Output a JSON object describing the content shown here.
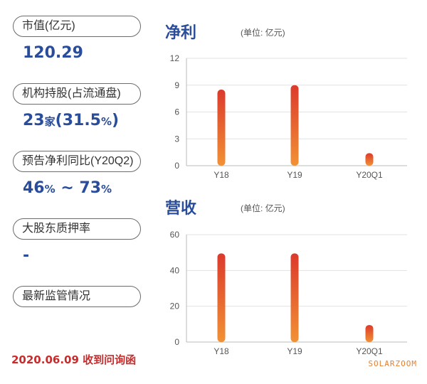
{
  "metrics": {
    "market_cap": {
      "label": "市值(亿元)",
      "value": "120.29"
    },
    "institutions": {
      "label": "机构持股(占流通盘)",
      "count": "23",
      "count_unit": "家",
      "open": "(",
      "pct": "31.5",
      "pct_unit": "%",
      "close": ")"
    },
    "forecast": {
      "label": "预告净利同比(Y20Q2)",
      "low": "46",
      "low_unit": "%",
      "sep": " ~ ",
      "high": "73",
      "high_unit": "%"
    },
    "pledge": {
      "label": "大股东质押率",
      "value": "-"
    },
    "regulation": {
      "label": "最新监管情况"
    }
  },
  "footer": {
    "text": "2020.06.09 收到问询函"
  },
  "brand": {
    "text": "SOLARZOOM"
  },
  "colors": {
    "bar_top": "#dc3a2c",
    "bar_bottom": "#f29134",
    "title": "#2a4d9b",
    "footer": "#cc2a2a"
  },
  "chart_data": [
    {
      "type": "bar",
      "title": "净利",
      "unit_label": "(单位: 亿元)",
      "categories": [
        "Y18",
        "Y19",
        "Y20Q1"
      ],
      "values": [
        8.5,
        9.0,
        1.4
      ],
      "yticks": [
        "0",
        "3",
        "6",
        "9",
        "12"
      ],
      "ylim": [
        0,
        12
      ],
      "grid": true
    },
    {
      "type": "bar",
      "title": "营收",
      "unit_label": "(单位: 亿元)",
      "categories": [
        "Y18",
        "Y19",
        "Y20Q1"
      ],
      "values": [
        49.5,
        49.5,
        9.5
      ],
      "yticks": [
        "0",
        "20",
        "40",
        "60"
      ],
      "ylim": [
        0,
        60
      ],
      "grid": true
    }
  ]
}
